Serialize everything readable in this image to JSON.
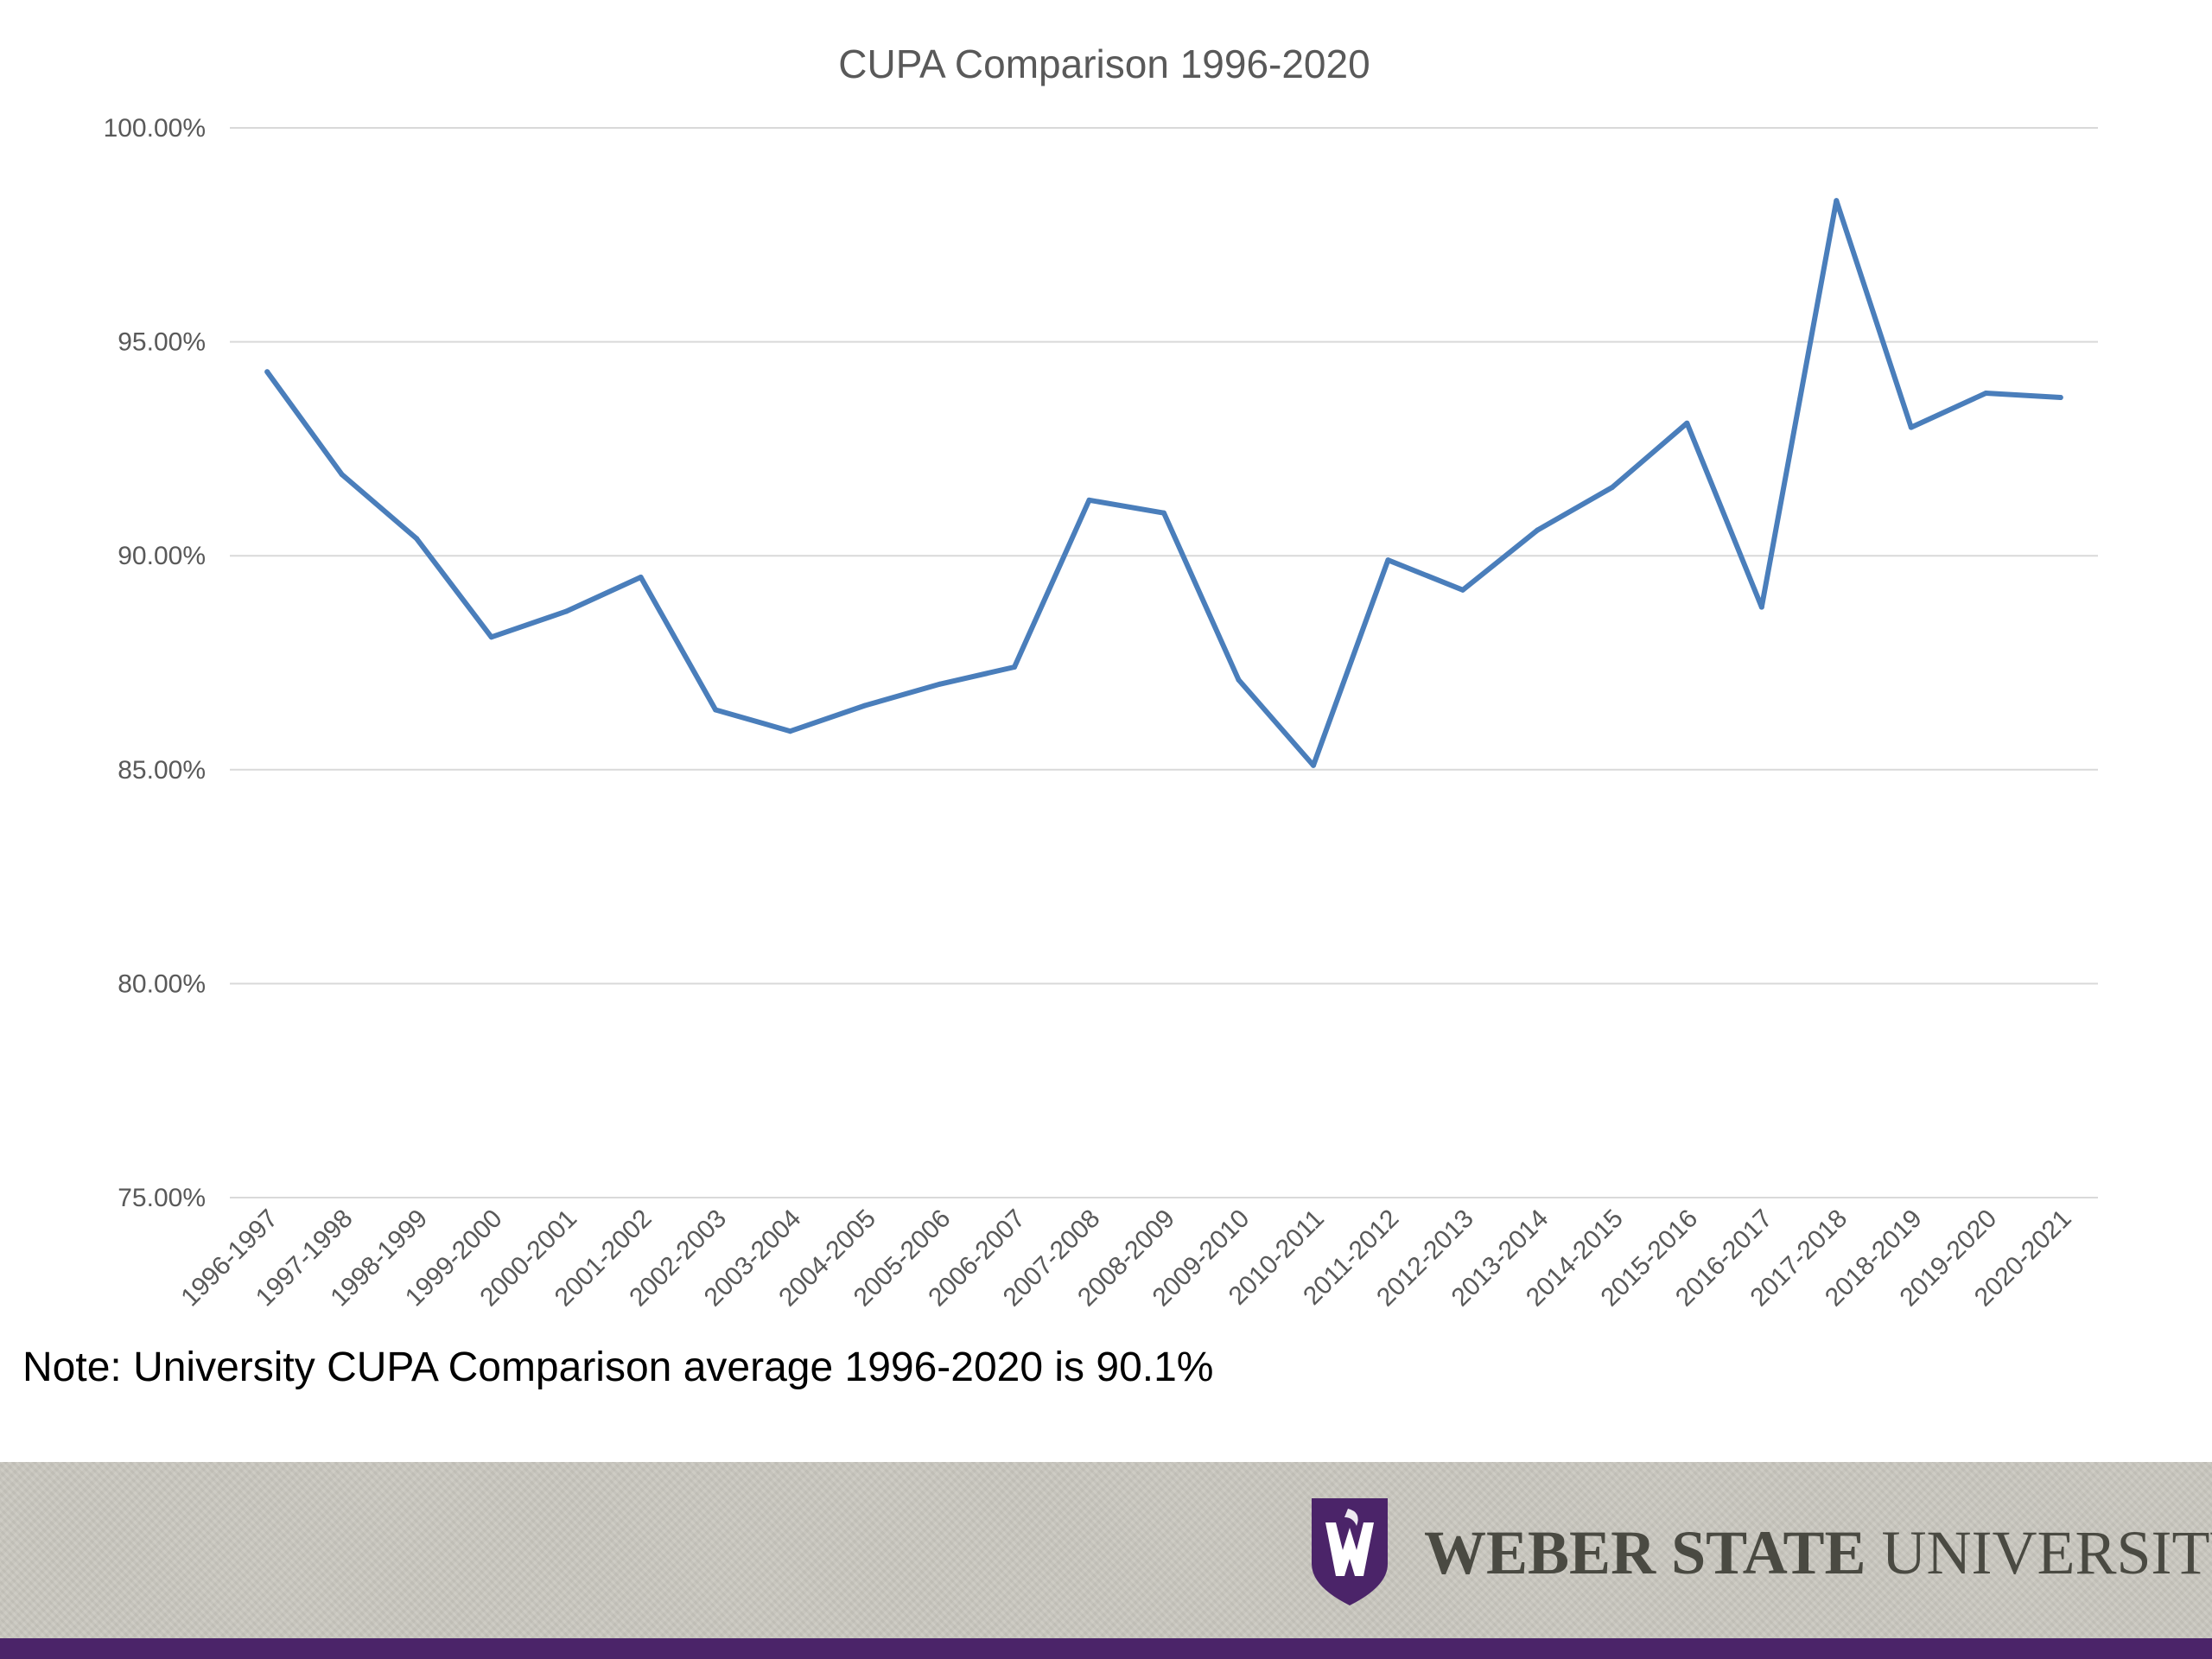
{
  "chart_data": {
    "type": "line",
    "title": "CUPA Comparison 1996-2020",
    "xlabel": "",
    "ylabel": "",
    "ylim": [
      75,
      100
    ],
    "ytick_values": [
      75,
      80,
      85,
      90,
      95,
      100
    ],
    "ytick_labels": [
      "75.00%",
      "80.00%",
      "85.00%",
      "90.00%",
      "95.00%",
      "100.00%"
    ],
    "grid": true,
    "legend": "none",
    "categories": [
      "1996-1997",
      "1997-1998",
      "1998-1999",
      "1999-2000",
      "2000-2001",
      "2001-2002",
      "2002-2003",
      "2003-2004",
      "2004-2005",
      "2005-2006",
      "2006-2007",
      "2007-2008",
      "2008-2009",
      "2009-2010",
      "2010-2011",
      "2011-2012",
      "2012-2013",
      "2013-2014",
      "2014-2015",
      "2015-2016",
      "2016-2017",
      "2017-2018",
      "2018-2019",
      "2019-2020",
      "2020-2021"
    ],
    "series": [
      {
        "color": "#4a7ebb",
        "values": [
          94.3,
          91.9,
          90.4,
          88.1,
          88.7,
          89.5,
          86.4,
          85.9,
          86.5,
          87.0,
          87.4,
          91.3,
          91.0,
          87.1,
          85.1,
          89.9,
          89.2,
          90.6,
          91.6,
          93.1,
          88.8,
          98.3,
          93.0,
          93.8,
          93.7
        ]
      }
    ]
  },
  "note": "Note: University CUPA Comparison average 1996-2020 is 90.1%",
  "logo": {
    "text_bold": "WEBER STATE",
    "text_regular": "UNIVERSITY",
    "icon": "w-shield-icon"
  },
  "colors": {
    "line": "#4a7ebb",
    "footer": "#c9c7bf",
    "footer_bar": "#4b2469",
    "shield": "#4b2469"
  }
}
